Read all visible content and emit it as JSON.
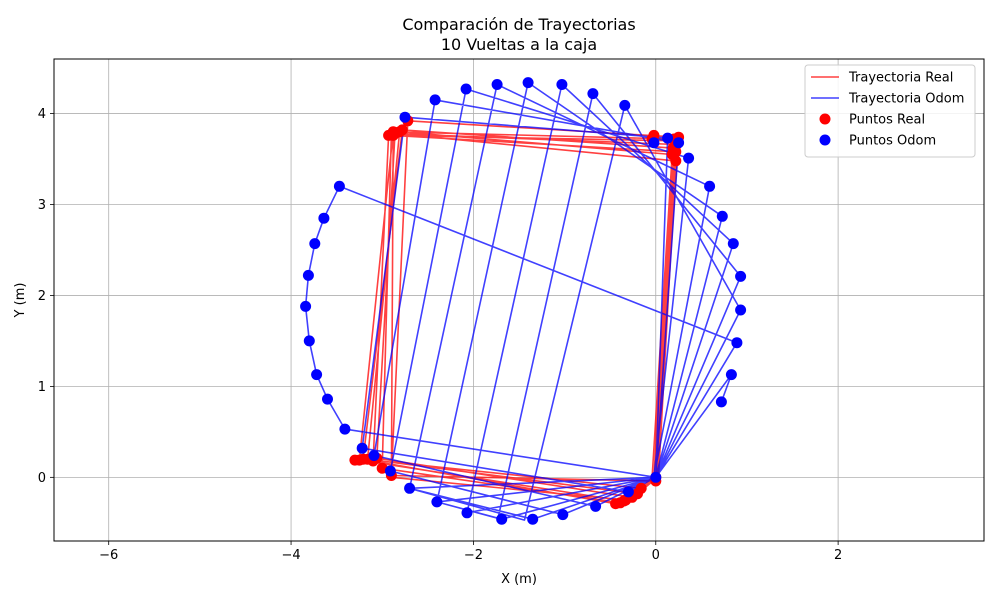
{
  "chart_data": {
    "type": "line",
    "title": "Comparación de Trayectorias",
    "subtitle": "10 Vueltas a la caja",
    "xlabel": "X (m)",
    "ylabel": "Y (m)",
    "xlim": [
      -6.6,
      3.6
    ],
    "ylim": [
      -0.7,
      4.6
    ],
    "xticks": [
      -6,
      -4,
      -2,
      0,
      2
    ],
    "yticks": [
      0,
      1,
      2,
      3,
      4
    ],
    "grid": true,
    "legend_position": "top-right",
    "colors": {
      "real": "#ff0000",
      "odom": "#0000ff"
    },
    "series": [
      {
        "name": "Trayectoria Real",
        "kind": "line",
        "color": "#ff0000",
        "x": [
          0.0,
          0.25,
          -2.72,
          -2.9,
          0.0,
          -0.02,
          0.19,
          -2.78,
          -3.21,
          -0.16,
          -0.04,
          0.18,
          -2.81,
          -3.16,
          -0.2,
          0.02,
          0.22,
          -2.86,
          -3.06,
          -0.26,
          0.0,
          0.22,
          -2.88,
          -2.9,
          -0.33,
          0.03,
          0.23,
          -2.9,
          -3.0,
          -0.39,
          0.01,
          0.21,
          -2.93,
          -3.1,
          -0.44,
          0.0,
          0.2,
          -2.88,
          -3.25,
          -0.35,
          0.0
        ],
        "y": [
          0.0,
          3.74,
          3.92,
          0.02,
          -0.04,
          0.0,
          3.62,
          3.82,
          0.2,
          -0.12,
          0.0,
          3.55,
          3.8,
          0.2,
          -0.18,
          0.0,
          3.48,
          3.78,
          0.21,
          -0.22,
          0.0,
          3.58,
          3.76,
          0.0,
          -0.25,
          0.0,
          3.66,
          3.78,
          0.1,
          -0.28,
          0.0,
          3.7,
          3.76,
          0.18,
          -0.29,
          0.0,
          3.72,
          3.8,
          0.19,
          -0.26,
          0.0
        ]
      },
      {
        "name": "Trayectoria Odom",
        "kind": "line",
        "color": "#0000ff",
        "x": [
          0.0,
          0.13,
          -2.75,
          -3.22,
          -0.3,
          0.0,
          0.25,
          -2.42,
          -3.09,
          -0.66,
          -0.02,
          0.36,
          -2.08,
          -2.91,
          -1.02,
          -0.02,
          0.59,
          -1.74,
          -2.7,
          -1.35,
          0.0,
          0.73,
          -1.4,
          -2.4,
          -1.69,
          0.0,
          0.85,
          -1.03,
          -2.07,
          -2.07,
          0.0,
          0.93,
          -0.69,
          -1.73,
          -2.4,
          0.0,
          0.93,
          -0.34,
          -1.44,
          -2.7,
          0.0,
          0.89,
          -3.47,
          -3.64,
          -3.74,
          -3.81,
          -3.84,
          -3.8,
          -3.72,
          -3.6,
          -3.41,
          0.0,
          0.83,
          0.72
        ],
        "y": [
          0.0,
          3.73,
          3.96,
          0.32,
          -0.16,
          0.0,
          3.68,
          4.15,
          0.24,
          -0.32,
          0.0,
          3.51,
          4.27,
          0.07,
          -0.41,
          0.0,
          3.2,
          4.32,
          -0.12,
          -0.46,
          0.0,
          2.87,
          4.34,
          -0.27,
          -0.46,
          0.0,
          2.57,
          4.32,
          -0.39,
          -0.39,
          0.0,
          2.21,
          4.22,
          -0.45,
          -0.27,
          0.0,
          1.84,
          4.09,
          -0.47,
          -0.12,
          0.0,
          1.48,
          3.2,
          2.85,
          2.57,
          2.22,
          1.88,
          1.5,
          1.13,
          0.86,
          0.53,
          0.0,
          1.13,
          0.83
        ]
      },
      {
        "name": "Puntos Real",
        "kind": "points",
        "color": "#ff0000",
        "x": [
          0.0,
          0.25,
          -2.72,
          -2.9,
          0.0,
          -0.02,
          0.19,
          -2.78,
          -3.21,
          -0.16,
          -0.04,
          0.18,
          -2.81,
          -3.16,
          -0.2,
          0.22,
          -2.86,
          -3.06,
          -0.26,
          0.22,
          -2.88,
          -0.33,
          0.23,
          -3.0,
          -0.39,
          0.21,
          -2.93,
          -3.1,
          -0.44,
          0.2,
          -2.88,
          -3.25,
          -0.35,
          -3.3
        ],
        "y": [
          0.0,
          3.74,
          3.92,
          0.02,
          -0.04,
          3.76,
          3.62,
          3.82,
          0.2,
          -0.12,
          3.72,
          3.55,
          3.8,
          0.2,
          -0.18,
          3.48,
          3.78,
          0.21,
          -0.22,
          3.58,
          3.76,
          -0.25,
          3.66,
          0.1,
          -0.28,
          3.7,
          3.76,
          0.18,
          -0.29,
          3.72,
          3.8,
          0.19,
          -0.26,
          0.19
        ]
      },
      {
        "name": "Puntos Odom",
        "kind": "points",
        "color": "#0000ff",
        "x": [
          0.0,
          0.13,
          0.25,
          0.36,
          0.59,
          0.73,
          0.85,
          0.93,
          0.93,
          0.89,
          0.83,
          0.72,
          -0.02,
          -2.75,
          -2.42,
          -2.08,
          -1.74,
          -1.4,
          -1.03,
          -0.69,
          -0.34,
          -3.47,
          -3.64,
          -3.74,
          -3.81,
          -3.84,
          -3.8,
          -3.72,
          -3.6,
          -3.41,
          -3.22,
          -3.09,
          -2.91,
          -2.7,
          -2.4,
          -2.07,
          -1.69,
          -1.35,
          -1.02,
          -0.66,
          -0.3
        ],
        "y": [
          0.0,
          3.73,
          3.68,
          3.51,
          3.2,
          2.87,
          2.57,
          2.21,
          1.84,
          1.48,
          1.13,
          0.83,
          3.68,
          3.96,
          4.15,
          4.27,
          4.32,
          4.34,
          4.32,
          4.22,
          4.09,
          3.2,
          2.85,
          2.57,
          2.22,
          1.88,
          1.5,
          1.13,
          0.86,
          0.53,
          0.32,
          0.24,
          0.07,
          -0.12,
          -0.27,
          -0.39,
          -0.46,
          -0.46,
          -0.41,
          -0.32,
          -0.16
        ]
      }
    ]
  }
}
